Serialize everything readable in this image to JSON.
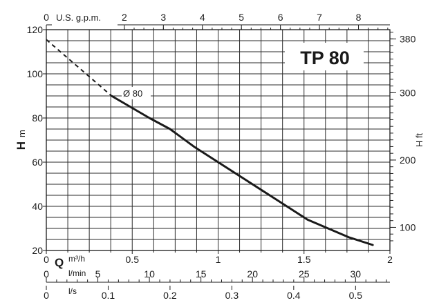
{
  "chart_data": {
    "type": "line",
    "title": "TP 80",
    "curve_label": "Ø 80",
    "ylabel_left": {
      "symbol": "H",
      "unit": "m"
    },
    "ylabel_right": "H ft",
    "xlabel": "Q",
    "ylim": [
      20,
      120
    ],
    "xlim_m3h": [
      0,
      2
    ],
    "y_ticks_m": [
      20,
      40,
      60,
      80,
      100,
      120
    ],
    "y_ticks_ft": [
      100,
      200,
      300,
      380
    ],
    "x_scales": {
      "gpm": {
        "unit": "U.S. g.p.m.",
        "ticks": [
          0,
          2,
          3,
          4,
          5,
          6,
          7,
          8
        ],
        "max": 8.8
      },
      "m3h": {
        "unit": "m³/h",
        "ticks": [
          "0",
          "0.5",
          "1",
          "1.5",
          "2"
        ]
      },
      "lmin": {
        "unit": "l/min",
        "ticks": [
          0,
          5,
          10,
          15,
          20,
          25,
          30
        ],
        "max": 33.33
      },
      "ls": {
        "unit": "l/s",
        "ticks": [
          "0",
          "0.1",
          "0.2",
          "0.3",
          "0.4",
          "0.5"
        ],
        "max": 0.5556
      }
    },
    "series": [
      {
        "name": "Ø 80",
        "x_m3h": [
          0.38,
          0.6,
          0.72,
          0.86,
          1.0,
          1.14,
          1.28,
          1.4,
          1.52,
          1.64,
          1.76,
          1.9
        ],
        "y_m": [
          90,
          80,
          75,
          67,
          60,
          53,
          46,
          40,
          34,
          30,
          26,
          22.5
        ]
      },
      {
        "name": "extrapolated",
        "x_m3h": [
          0.0,
          0.38
        ],
        "y_m": [
          115.5,
          90
        ]
      }
    ]
  }
}
